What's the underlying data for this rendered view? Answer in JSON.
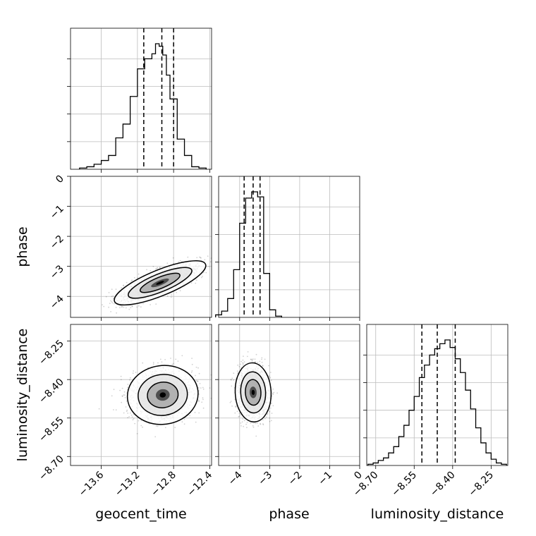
{
  "chart_data": {
    "type": "corner",
    "parameters": [
      "geocent_time",
      "phase",
      "luminosity_distance"
    ],
    "axes": {
      "geocent_time": {
        "range": [
          -13.94,
          -12.38
        ],
        "ticks": [
          -13.6,
          -13.2,
          -12.8,
          -12.4
        ],
        "tick_labels": [
          "−13.6",
          "−13.2",
          "−12.8",
          "−12.4"
        ]
      },
      "phase": {
        "range": [
          -4.7,
          0.0
        ],
        "ticks": [
          -4,
          -3,
          -2,
          -1,
          0
        ],
        "tick_labels": [
          "−4",
          "−3",
          "−2",
          "−1",
          "0"
        ]
      },
      "luminosity_distance": {
        "range": [
          -8.735,
          -8.185
        ],
        "ticks": [
          -8.7,
          -8.55,
          -8.4,
          -8.25
        ],
        "tick_labels": [
          "−8.70",
          "−8.55",
          "−8.40",
          "−8.25"
        ]
      }
    },
    "quantiles": {
      "geocent_time": [
        -13.13,
        -12.93,
        -12.8
      ],
      "phase": [
        -3.85,
        -3.55,
        -3.32
      ],
      "luminosity_distance": [
        -8.52,
        -8.46,
        -8.39
      ]
    },
    "histograms": [
      {
        "param": "geocent_time",
        "bins": [
          -13.8,
          -13.72,
          -13.64,
          -13.56,
          -13.48,
          -13.4,
          -13.32,
          -13.24,
          -13.16,
          -13.08,
          -13.0,
          -12.96,
          -12.92,
          -12.88,
          -12.84,
          -12.8,
          -12.72,
          -12.64,
          -12.56,
          -12.48
        ],
        "counts": [
          0.01,
          0.02,
          0.04,
          0.07,
          0.11,
          0.25,
          0.36,
          0.58,
          0.8,
          0.88,
          0.92,
          1.0,
          0.98,
          0.91,
          0.75,
          0.56,
          0.24,
          0.11,
          0.02,
          0.01
        ]
      },
      {
        "param": "phase",
        "bins": [
          -4.7,
          -4.5,
          -4.3,
          -4.1,
          -3.9,
          -3.7,
          -3.5,
          -3.3,
          -3.1,
          -2.9,
          -2.7
        ],
        "counts": [
          0.02,
          0.05,
          0.15,
          0.38,
          0.75,
          0.95,
          1.0,
          0.96,
          0.35,
          0.06,
          0.01
        ]
      },
      {
        "param": "luminosity_distance",
        "bins": [
          -8.72,
          -8.7,
          -8.68,
          -8.66,
          -8.64,
          -8.62,
          -8.6,
          -8.58,
          -8.56,
          -8.54,
          -8.52,
          -8.5,
          -8.48,
          -8.46,
          -8.44,
          -8.42,
          -8.4,
          -8.38,
          -8.36,
          -8.34,
          -8.32,
          -8.3,
          -8.28,
          -8.26,
          -8.24,
          -8.22,
          -8.2
        ],
        "counts": [
          0.01,
          0.02,
          0.04,
          0.06,
          0.1,
          0.15,
          0.23,
          0.32,
          0.44,
          0.55,
          0.7,
          0.8,
          0.88,
          0.93,
          0.97,
          1.0,
          0.94,
          0.85,
          0.74,
          0.6,
          0.45,
          0.3,
          0.18,
          0.1,
          0.05,
          0.02,
          0.01
        ]
      }
    ],
    "joint_2d": [
      {
        "x": "geocent_time",
        "y": "phase",
        "mean": [
          -12.95,
          -3.55
        ],
        "std": [
          0.22,
          0.32
        ],
        "corr": 0.78
      },
      {
        "x": "geocent_time",
        "y": "luminosity_distance",
        "mean": [
          -12.92,
          -8.46
        ],
        "std": [
          0.17,
          0.05
        ],
        "corr": 0.05
      },
      {
        "x": "phase",
        "y": "luminosity_distance",
        "mean": [
          -3.55,
          -8.45
        ],
        "std": [
          0.26,
          0.05
        ],
        "corr": -0.05
      }
    ],
    "grid": true,
    "xlabel_bottom": [
      "geocent_time",
      "phase",
      "luminosity_distance"
    ],
    "ylabel_left": [
      "phase",
      "luminosity_distance"
    ]
  }
}
